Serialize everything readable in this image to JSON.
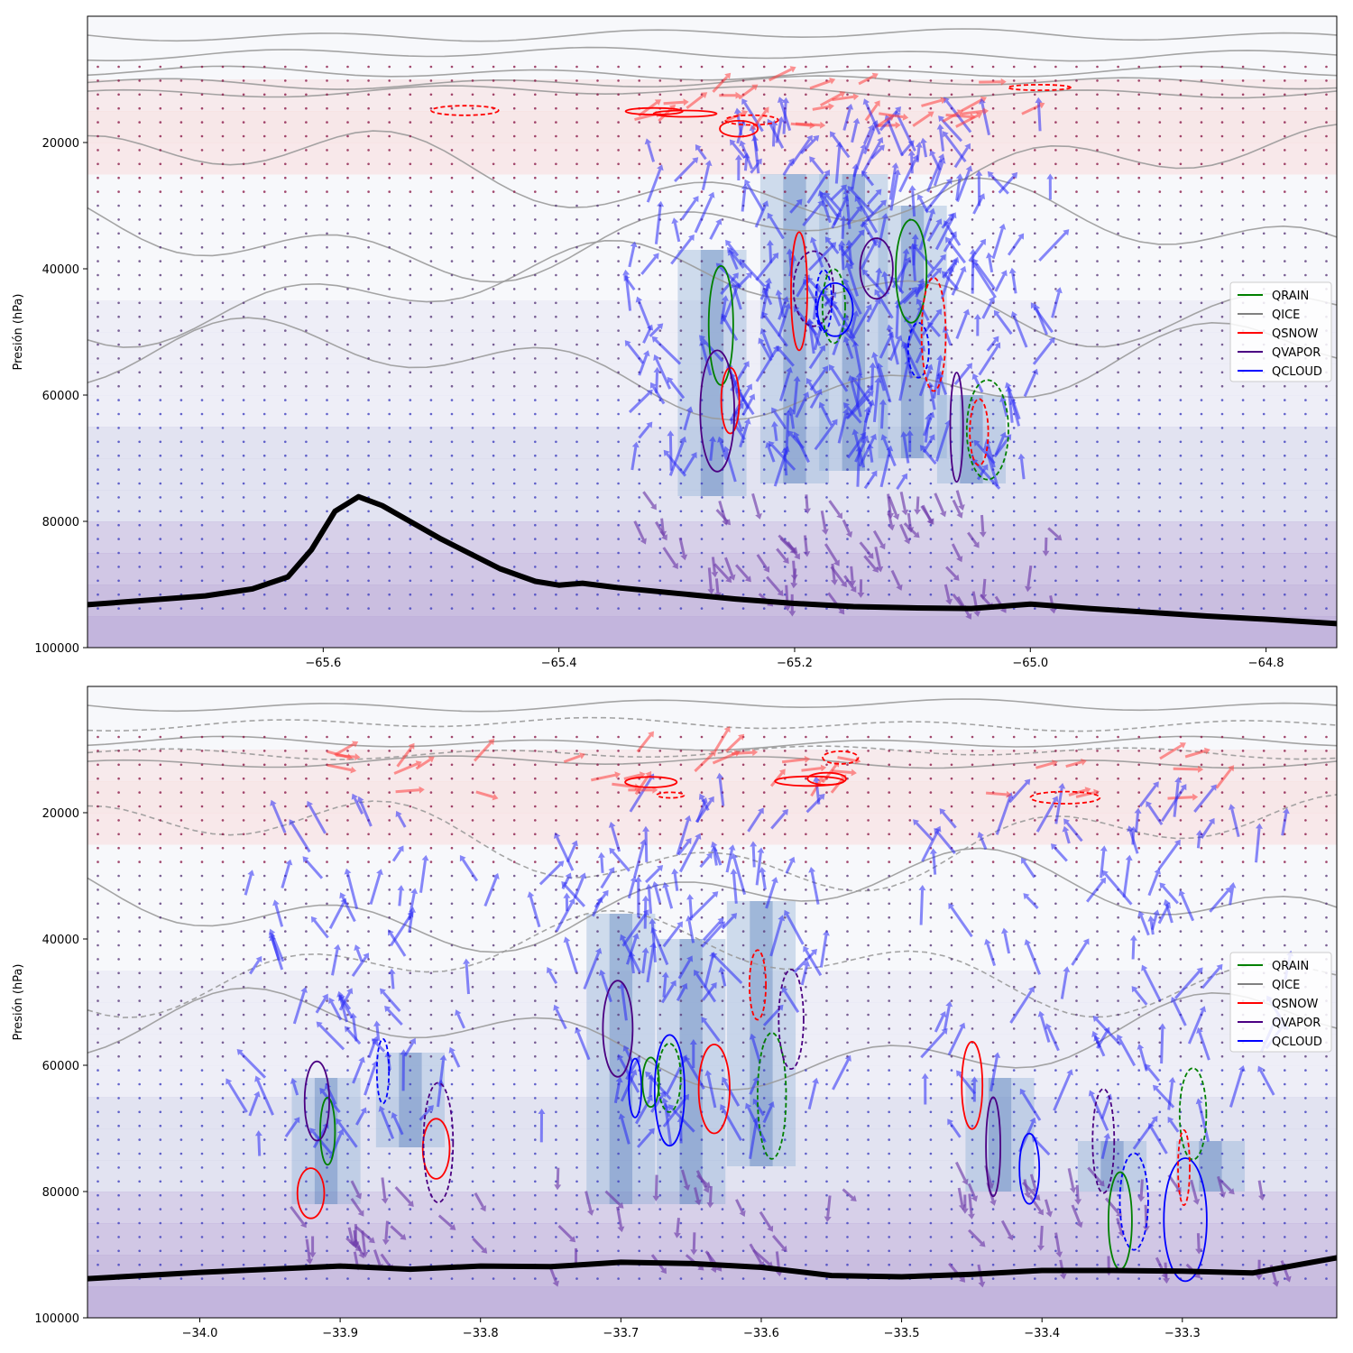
{
  "chart_data": [
    {
      "type": "other",
      "ylabel": "Presión (hPa)",
      "xlim": [
        -65.8,
        -64.74
      ],
      "ylim": [
        100000,
        0
      ],
      "x_ticks": [
        -65.6,
        -65.4,
        -65.2,
        -65.0,
        -64.8
      ],
      "x_tick_labels": [
        "−65.6",
        "−65.4",
        "−65.2",
        "−65.0",
        "−64.8"
      ],
      "y_ticks": [
        20000,
        40000,
        60000,
        80000,
        100000
      ],
      "y_tick_labels": [
        "20000",
        "40000",
        "60000",
        "80000",
        "100000"
      ],
      "legend": {
        "placement": "center-right",
        "entries": [
          {
            "label": "QRAIN",
            "color": "#008000"
          },
          {
            "label": "QICE",
            "color": "#808080"
          },
          {
            "label": "QSNOW",
            "color": "#ff0000"
          },
          {
            "label": "QVAPOR",
            "color": "#4b0082"
          },
          {
            "label": "QCLOUD",
            "color": "#0000ff"
          }
        ]
      },
      "surface_pressure": {
        "x": [
          -65.8,
          -65.7,
          -65.66,
          -65.63,
          -65.61,
          -65.59,
          -65.57,
          -65.55,
          -65.5,
          -65.45,
          -65.42,
          -65.4,
          -65.38,
          -65.35,
          -65.3,
          -65.25,
          -65.2,
          -65.15,
          -65.1,
          -65.05,
          -65.0,
          -64.95,
          -64.9,
          -64.85,
          -64.8,
          -64.74
        ],
        "y": [
          93200,
          91800,
          90700,
          88800,
          84500,
          78400,
          76100,
          77500,
          82800,
          87500,
          89500,
          90100,
          89800,
          90500,
          91400,
          92300,
          93000,
          93500,
          93700,
          93800,
          93100,
          93800,
          94400,
          95000,
          95500,
          96200
        ]
      },
      "updraft_columns": [
        {
          "x": -65.27,
          "top": 37000,
          "bottom": 76000
        },
        {
          "x": -65.2,
          "top": 25000,
          "bottom": 74000
        },
        {
          "x": -65.15,
          "top": 25000,
          "bottom": 72000
        },
        {
          "x": -65.1,
          "top": 30000,
          "bottom": 70000
        },
        {
          "x": -65.05,
          "top": 60000,
          "bottom": 74000
        }
      ]
    },
    {
      "type": "other",
      "ylabel": "Presión (hPa)",
      "xlim": [
        -34.08,
        -33.19
      ],
      "ylim": [
        100000,
        0
      ],
      "x_ticks": [
        -34.0,
        -33.9,
        -33.8,
        -33.7,
        -33.6,
        -33.5,
        -33.4,
        -33.3
      ],
      "x_tick_labels": [
        "−34.0",
        "−33.9",
        "−33.8",
        "−33.7",
        "−33.6",
        "−33.5",
        "−33.4",
        "−33.3"
      ],
      "y_ticks": [
        20000,
        40000,
        60000,
        80000,
        100000
      ],
      "y_tick_labels": [
        "20000",
        "40000",
        "60000",
        "80000",
        "100000"
      ],
      "legend": {
        "placement": "center-right",
        "entries": [
          {
            "label": "QRAIN",
            "color": "#008000"
          },
          {
            "label": "QICE",
            "color": "#808080"
          },
          {
            "label": "QSNOW",
            "color": "#ff0000"
          },
          {
            "label": "QVAPOR",
            "color": "#4b0082"
          },
          {
            "label": "QCLOUD",
            "color": "#0000ff"
          }
        ]
      },
      "surface_pressure": {
        "x": [
          -34.08,
          -34.0,
          -33.9,
          -33.85,
          -33.8,
          -33.75,
          -33.7,
          -33.65,
          -33.6,
          -33.55,
          -33.5,
          -33.45,
          -33.4,
          -33.35,
          -33.3,
          -33.25,
          -33.19
        ],
        "y": [
          93800,
          92800,
          91800,
          92300,
          91800,
          91900,
          91200,
          91400,
          92000,
          93300,
          93500,
          93100,
          92500,
          92500,
          92600,
          92900,
          90500
        ]
      },
      "updraft_columns": [
        {
          "x": -33.91,
          "top": 62000,
          "bottom": 82000
        },
        {
          "x": -33.85,
          "top": 58000,
          "bottom": 73000
        },
        {
          "x": -33.7,
          "top": 36000,
          "bottom": 82000
        },
        {
          "x": -33.65,
          "top": 40000,
          "bottom": 82000
        },
        {
          "x": -33.6,
          "top": 34000,
          "bottom": 76000
        },
        {
          "x": -33.43,
          "top": 62000,
          "bottom": 80000
        },
        {
          "x": -33.35,
          "top": 72000,
          "bottom": 80000
        },
        {
          "x": -33.28,
          "top": 72000,
          "bottom": 80000
        }
      ]
    }
  ]
}
